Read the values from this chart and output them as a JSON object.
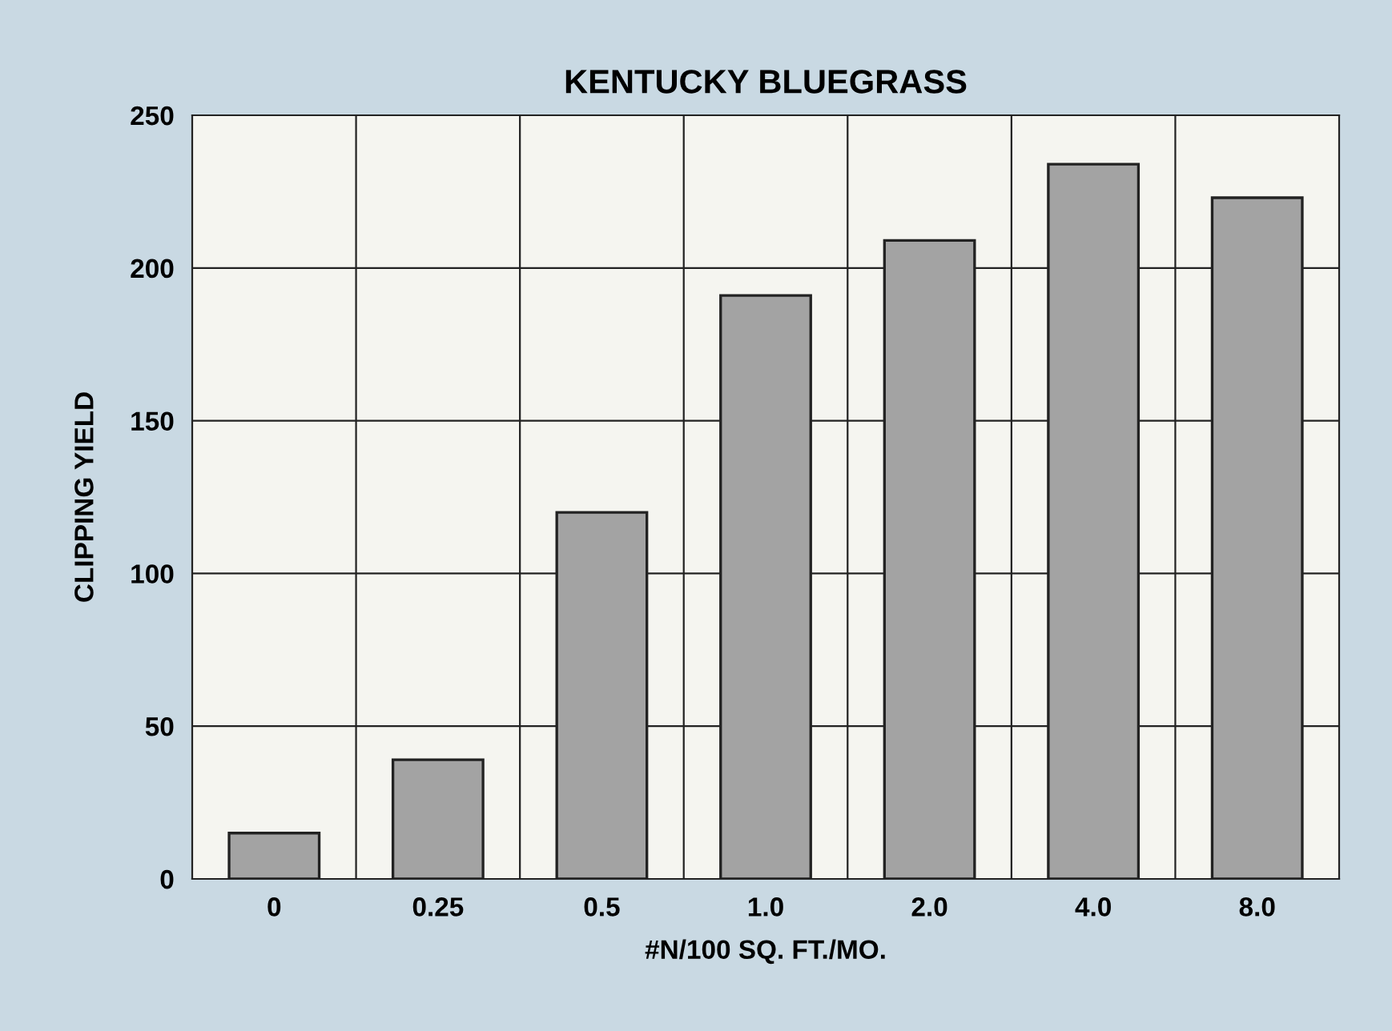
{
  "chart_data": {
    "type": "bar",
    "title": "KENTUCKY BLUEGRASS",
    "xlabel": "#N/100 SQ. FT./MO.",
    "ylabel": "CLIPPING YIELD",
    "categories": [
      "0",
      "0.25",
      "0.5",
      "1.0",
      "2.0",
      "4.0",
      "8.0"
    ],
    "values": [
      15,
      39,
      120,
      191,
      209,
      234,
      223
    ],
    "color": "#a3a3a3",
    "ylim": [
      0,
      250
    ],
    "yticks": [
      0,
      50,
      100,
      150,
      200,
      250
    ],
    "grid": true
  }
}
